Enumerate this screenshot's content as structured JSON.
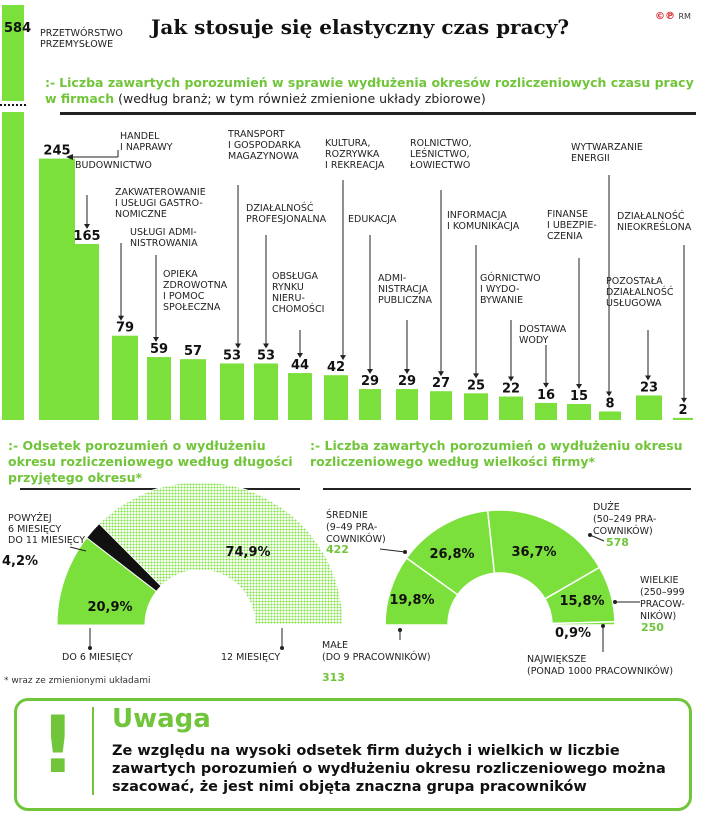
{
  "header": {
    "title": "Jak stosuje się elastyczny czas pracy?",
    "logo": "©℗",
    "logo_rm": "RM"
  },
  "heading_bar": {
    "marker": ":-",
    "highlight": "Liczba zawartych porozumień w sprawie wydłużenia okresów rozliczeniowych czasu pracy w firmach",
    "subtitle": "(według branż; w tym również zmienione układy zbiorowe)"
  },
  "heading_pie_left": {
    "marker": ":-",
    "text": "Odsetek porozumień o wydłużeniu okresu rozliczeniowego według długości przyjętego okresu*"
  },
  "heading_pie_right": {
    "marker": ":-",
    "text": "Liczba zawartych porozumień o wydłużeniu okresu rozliczeniowego według wielkości firmy*"
  },
  "footnote": "* wraz ze zmienionymi układami",
  "uwaga": {
    "icon": "!",
    "title": "Uwaga",
    "text": "Ze względu na wysoki odsetek firm dużych i wielkich w liczbie zawartych porozumień o wydłużeniu okresu rozliczeniowego można szacować, że jest nimi objęta znaczna grupa pracowników"
  },
  "chart_data": [
    {
      "type": "bar",
      "title": "Liczba zawartych porozumień w sprawie wydłużenia okresów rozliczeniowych czasu pracy w firmach",
      "axis_break": true,
      "colors": {
        "bar": "#7be03b",
        "text": "#111111"
      },
      "categories": [
        "PRZETWÓRSTWO PRZEMYSŁOWE",
        "HANDEL I NAPRAWY",
        "BUDOWNICTWO",
        "ZAKWATEROWANIE I USŁUGI GASTRONOMICZNE",
        "USŁUGI ADMINISTROWANIA",
        "OPIEKA ZDROWOTNA I POMOC SPOŁECZNA",
        "TRANSPORT I GOSPODARKA MAGAZYNOWA",
        "DZIAŁALNOŚĆ PROFESJONALNA",
        "OBSŁUGA RYNKU NIERUCHOMOŚCI",
        "KULTURA, ROZRYWKA I REKREACJA",
        "EDUKACJA",
        "ADMINISTRACJA PUBLICZNA",
        "ROLNICTWO, LEŚNICTWO, ŁOWIECTWO",
        "INFORMACJA I KOMUNIKACJA",
        "GÓRNICTWO I WYDOBYWANIE",
        "DOSTAWA WODY",
        "FINANSE I UBEZPIECZENIA",
        "WYTWARZANIE ENERGII",
        "POZOSTAŁA DZIAŁALNOŚĆ USŁUGOWA",
        "DZIAŁALNOŚĆ NIEOKREŚLONA"
      ],
      "label_lines": [
        [
          "PRZETWÓRSTWO",
          "PRZEMYSŁOWE"
        ],
        [
          "HANDEL",
          "I NAPRAWY"
        ],
        [
          "BUDOWNICTWO"
        ],
        [
          "ZAKWATEROWANIE",
          "I USŁUGI GASTRO-",
          "NOMICZNE"
        ],
        [
          "USŁUGI ADMI-",
          "NISTROWANIA"
        ],
        [
          "OPIEKA",
          "ZDROWOTNA",
          "I POMOC",
          "SPOŁECZNA"
        ],
        [
          "TRANSPORT",
          "I GOSPODARKA",
          "MAGAZYNOWA"
        ],
        [
          "DZIAŁALNOŚĆ",
          "PROFESJONALNA"
        ],
        [
          "OBSŁUGA",
          "RYNKU",
          "NIERU-",
          "CHOMOŚCI"
        ],
        [
          "KULTURA,",
          "ROZRYWKA",
          "I REKREACJA"
        ],
        [
          "EDUKACJA"
        ],
        [
          "ADMI-",
          "NISTRACJA",
          "PUBLICZNA"
        ],
        [
          "ROLNICTWO,",
          "LEŚNICTWO,",
          "ŁOWIECTWO"
        ],
        [
          "INFORMACJA",
          "I KOMUNIKACJA"
        ],
        [
          "GÓRNICTWO",
          "I WYDO-",
          "BYWANIE"
        ],
        [
          "DOSTAWA",
          "WODY"
        ],
        [
          "FINANSE",
          "I UBEZPIE-",
          "CZENIA"
        ],
        [
          "WYTWARZANIE",
          "ENERGII"
        ],
        [
          "POZOSTAŁA",
          "DZIAŁALNOŚĆ",
          "USŁUGOWA"
        ],
        [
          "DZIAŁALNOŚĆ",
          "NIEOKREŚLONA"
        ]
      ],
      "values": [
        584,
        245,
        165,
        79,
        59,
        57,
        53,
        53,
        44,
        42,
        29,
        29,
        27,
        25,
        22,
        16,
        15,
        8,
        23,
        2
      ]
    },
    {
      "type": "pie",
      "title": "Odsetek porozumień o wydłużeniu okresu rozliczeniowego według długości przyjętego okresu*",
      "slices": [
        {
          "label": "DO 6 MIESIĘCY",
          "value": 20.9,
          "display": "20,9%",
          "color": "#7be03b"
        },
        {
          "label": "POWYŻEJ 6 MIESIĘCY DO 11 MIESIĘCY",
          "label_lines": [
            "POWYŻEJ",
            "6 MIESIĘCY",
            "DO 11 MIESIĘCY"
          ],
          "value": 4.2,
          "display": "4,2%",
          "color": "#111111"
        },
        {
          "label": "12 MIESIĘCY",
          "value": 74.9,
          "display": "74,9%",
          "color": "#7be03b",
          "pattern": "dotted"
        }
      ]
    },
    {
      "type": "pie",
      "title": "Liczba zawartych porozumień o wydłużeniu okresu rozliczeniowego według wielkości firmy*",
      "slices": [
        {
          "label": "MAŁE (DO 9 PRACOWNIKÓW)",
          "label_lines": [
            "MAŁE",
            "(DO 9 PRACOWNIKÓW)"
          ],
          "count": 313,
          "value": 19.8,
          "display": "19,8%",
          "color": "#7be03b"
        },
        {
          "label": "ŚREDNIE (9–49 PRACOWNIKÓW)",
          "label_lines": [
            "ŚREDNIE",
            "(9–49 PRA-",
            "COWNIKÓW)"
          ],
          "count": 422,
          "value": 26.8,
          "display": "26,8%",
          "color": "#7be03b"
        },
        {
          "label": "DUŻE (50–249 PRACOWNIKÓW)",
          "label_lines": [
            "DUŻE",
            "(50–249 PRA-",
            "COWNIKÓW)"
          ],
          "count": 578,
          "value": 36.7,
          "display": "36,7%",
          "color": "#7be03b"
        },
        {
          "label": "WIELKIE (250–999 PRACOWNIKÓW)",
          "label_lines": [
            "WIELKIE",
            "(250–999",
            "PRACOW-",
            "NIKÓW)"
          ],
          "count": 250,
          "value": 15.8,
          "display": "15,8%",
          "color": "#7be03b"
        },
        {
          "label": "NAJWIĘKSZE (PONAD 1000 PRACOWNIKÓW)",
          "label_lines": [
            "NAJWIĘKSZE",
            "(PONAD 1000 PRACOWNIKÓW)"
          ],
          "value": 0.9,
          "display": "0,9%",
          "color": "#7be03b"
        }
      ]
    }
  ]
}
